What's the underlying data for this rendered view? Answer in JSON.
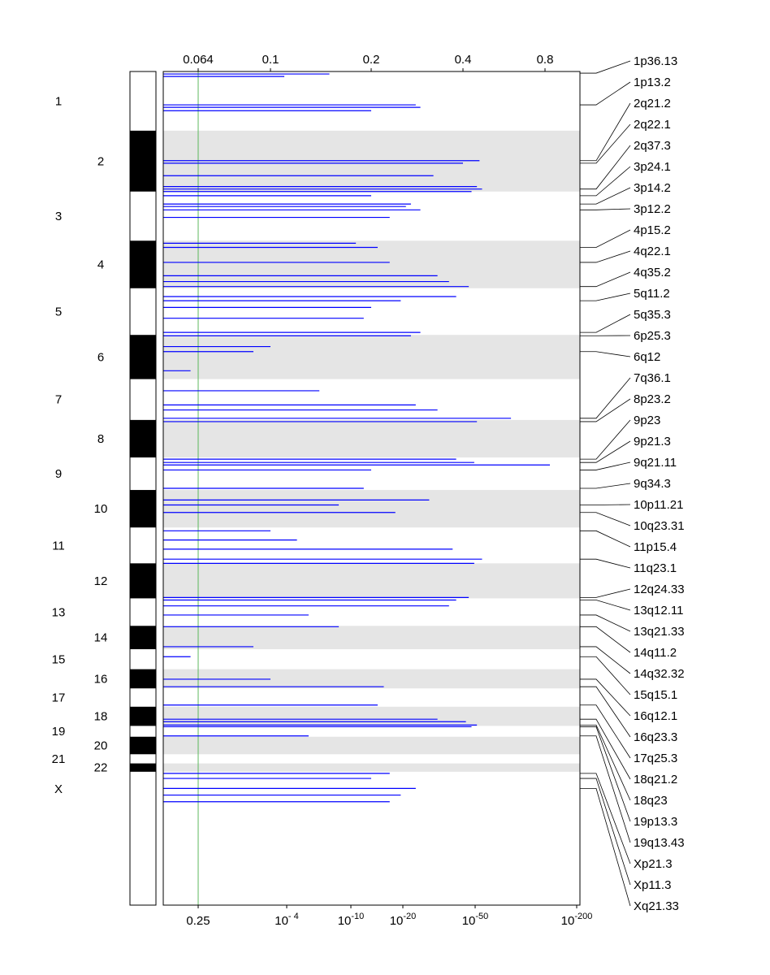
{
  "chart_data": {
    "type": "genome-plot",
    "title": "",
    "top_axis": {
      "ticks": [
        "0.064",
        "0.1",
        "0.2",
        "0.4",
        "0.8"
      ],
      "tick_values": [
        0.064,
        0.1,
        0.2,
        0.4,
        0.8
      ]
    },
    "bottom_axis": {
      "ticks": [
        {
          "base": "0.25",
          "exp": ""
        },
        {
          "base": "10",
          "exp": "- 4"
        },
        {
          "base": "10",
          "exp": "-10"
        },
        {
          "base": "10",
          "exp": "-20"
        },
        {
          "base": "10",
          "exp": "-50"
        },
        {
          "base": "10",
          "exp": "-200"
        }
      ]
    },
    "threshold_line": {
      "value": 0.25,
      "color": "#5cb85c"
    },
    "series_color": "#0000ff",
    "band_shading_color": "#e5e5e5",
    "chromosomes": [
      {
        "label": "1",
        "start": 0,
        "end": 0.071,
        "shade": "white"
      },
      {
        "label": "2",
        "start": 0.071,
        "end": 0.144,
        "shade": "black"
      },
      {
        "label": "3",
        "start": 0.144,
        "end": 0.203,
        "shade": "white"
      },
      {
        "label": "4",
        "start": 0.203,
        "end": 0.26,
        "shade": "black"
      },
      {
        "label": "5",
        "start": 0.26,
        "end": 0.316,
        "shade": "white"
      },
      {
        "label": "6",
        "start": 0.316,
        "end": 0.369,
        "shade": "black"
      },
      {
        "label": "7",
        "start": 0.369,
        "end": 0.418,
        "shade": "white"
      },
      {
        "label": "8",
        "start": 0.418,
        "end": 0.463,
        "shade": "black"
      },
      {
        "label": "9",
        "start": 0.463,
        "end": 0.502,
        "shade": "white"
      },
      {
        "label": "10",
        "start": 0.502,
        "end": 0.547,
        "shade": "black"
      },
      {
        "label": "11",
        "start": 0.547,
        "end": 0.59,
        "shade": "white"
      },
      {
        "label": "12",
        "start": 0.59,
        "end": 0.632,
        "shade": "black"
      },
      {
        "label": "13",
        "start": 0.632,
        "end": 0.665,
        "shade": "white"
      },
      {
        "label": "14",
        "start": 0.665,
        "end": 0.693,
        "shade": "black"
      },
      {
        "label": "15",
        "start": 0.693,
        "end": 0.717,
        "shade": "white"
      },
      {
        "label": "16",
        "start": 0.717,
        "end": 0.74,
        "shade": "black"
      },
      {
        "label": "17",
        "start": 0.74,
        "end": 0.762,
        "shade": "white"
      },
      {
        "label": "18",
        "start": 0.762,
        "end": 0.785,
        "shade": "black"
      },
      {
        "label": "19",
        "start": 0.785,
        "end": 0.798,
        "shade": "white"
      },
      {
        "label": "20",
        "start": 0.798,
        "end": 0.819,
        "shade": "black"
      },
      {
        "label": "21",
        "start": 0.819,
        "end": 0.83,
        "shade": "white"
      },
      {
        "label": "22",
        "start": 0.83,
        "end": 0.84,
        "shade": "black"
      },
      {
        "label": "X",
        "start": 0.84,
        "end": 0.881,
        "shade": "white"
      }
    ],
    "cytobands": [
      {
        "label": "1p36.13",
        "pos": 0.002
      },
      {
        "label": "1p13.2",
        "pos": 0.04
      },
      {
        "label": "2q21.2",
        "pos": 0.107
      },
      {
        "label": "2q22.1",
        "pos": 0.11
      },
      {
        "label": "2q37.3",
        "pos": 0.141
      },
      {
        "label": "3p24.1",
        "pos": 0.149
      },
      {
        "label": "3p14.2",
        "pos": 0.159
      },
      {
        "label": "3p12.2",
        "pos": 0.166
      },
      {
        "label": "4p15.2",
        "pos": 0.211
      },
      {
        "label": "4q22.1",
        "pos": 0.229
      },
      {
        "label": "4q35.2",
        "pos": 0.258
      },
      {
        "label": "5q11.2",
        "pos": 0.275
      },
      {
        "label": "5q35.3",
        "pos": 0.313
      },
      {
        "label": "6p25.3",
        "pos": 0.317
      },
      {
        "label": "6q12",
        "pos": 0.336
      },
      {
        "label": "7q36.1",
        "pos": 0.416
      },
      {
        "label": "8p23.2",
        "pos": 0.42
      },
      {
        "label": "9p23",
        "pos": 0.465
      },
      {
        "label": "9p21.3",
        "pos": 0.469
      },
      {
        "label": "9q21.11",
        "pos": 0.478
      },
      {
        "label": "9q34.3",
        "pos": 0.5
      },
      {
        "label": "10p11.21",
        "pos": 0.52
      },
      {
        "label": "10q23.31",
        "pos": 0.529
      },
      {
        "label": "11p15.4",
        "pos": 0.551
      },
      {
        "label": "11q23.1",
        "pos": 0.585
      },
      {
        "label": "12q24.33",
        "pos": 0.631
      },
      {
        "label": "13q12.11",
        "pos": 0.634
      },
      {
        "label": "13q21.33",
        "pos": 0.652
      },
      {
        "label": "14q11.2",
        "pos": 0.666
      },
      {
        "label": "14q32.32",
        "pos": 0.69
      },
      {
        "label": "15q15.1",
        "pos": 0.702
      },
      {
        "label": "16q12.1",
        "pos": 0.729
      },
      {
        "label": "16q23.3",
        "pos": 0.738
      },
      {
        "label": "17q25.3",
        "pos": 0.76
      },
      {
        "label": "18q21.2",
        "pos": 0.777
      },
      {
        "label": "18q23",
        "pos": 0.784
      },
      {
        "label": "19p13.3",
        "pos": 0.786
      },
      {
        "label": "19q13.43",
        "pos": 0.797
      },
      {
        "label": "Xp21.3",
        "pos": 0.842
      },
      {
        "label": "Xp11.3",
        "pos": 0.848
      },
      {
        "label": "Xq21.33",
        "pos": 0.86
      }
    ],
    "peaks": [
      {
        "pos": 0.003,
        "score": 0.15
      },
      {
        "pos": 0.006,
        "score": 0.11
      },
      {
        "pos": 0.04,
        "score": 0.28
      },
      {
        "pos": 0.043,
        "score": 0.29
      },
      {
        "pos": 0.047,
        "score": 0.2
      },
      {
        "pos": 0.107,
        "score": 0.46
      },
      {
        "pos": 0.11,
        "score": 0.4
      },
      {
        "pos": 0.125,
        "score": 0.32
      },
      {
        "pos": 0.138,
        "score": 0.45
      },
      {
        "pos": 0.141,
        "score": 0.47
      },
      {
        "pos": 0.144,
        "score": 0.43
      },
      {
        "pos": 0.149,
        "score": 0.2
      },
      {
        "pos": 0.159,
        "score": 0.27
      },
      {
        "pos": 0.162,
        "score": 0.26
      },
      {
        "pos": 0.166,
        "score": 0.29
      },
      {
        "pos": 0.175,
        "score": 0.23
      },
      {
        "pos": 0.206,
        "score": 0.18
      },
      {
        "pos": 0.211,
        "score": 0.21
      },
      {
        "pos": 0.229,
        "score": 0.23
      },
      {
        "pos": 0.245,
        "score": 0.33
      },
      {
        "pos": 0.252,
        "score": 0.36
      },
      {
        "pos": 0.258,
        "score": 0.42
      },
      {
        "pos": 0.27,
        "score": 0.38
      },
      {
        "pos": 0.275,
        "score": 0.25
      },
      {
        "pos": 0.283,
        "score": 0.2
      },
      {
        "pos": 0.296,
        "score": 0.19
      },
      {
        "pos": 0.313,
        "score": 0.29
      },
      {
        "pos": 0.317,
        "score": 0.27
      },
      {
        "pos": 0.33,
        "score": 0.1
      },
      {
        "pos": 0.336,
        "score": 0.09
      },
      {
        "pos": 0.359,
        "score": 0.05
      },
      {
        "pos": 0.383,
        "score": 0.14
      },
      {
        "pos": 0.4,
        "score": 0.28
      },
      {
        "pos": 0.406,
        "score": 0.33
      },
      {
        "pos": 0.416,
        "score": 0.6
      },
      {
        "pos": 0.42,
        "score": 0.45
      },
      {
        "pos": 0.465,
        "score": 0.38
      },
      {
        "pos": 0.469,
        "score": 0.44
      },
      {
        "pos": 0.472,
        "score": 0.86
      },
      {
        "pos": 0.478,
        "score": 0.2
      },
      {
        "pos": 0.5,
        "score": 0.19
      },
      {
        "pos": 0.514,
        "score": 0.31
      },
      {
        "pos": 0.52,
        "score": 0.16
      },
      {
        "pos": 0.529,
        "score": 0.24
      },
      {
        "pos": 0.551,
        "score": 0.1
      },
      {
        "pos": 0.562,
        "score": 0.12
      },
      {
        "pos": 0.573,
        "score": 0.37
      },
      {
        "pos": 0.585,
        "score": 0.47
      },
      {
        "pos": 0.59,
        "score": 0.44
      },
      {
        "pos": 0.631,
        "score": 0.42
      },
      {
        "pos": 0.634,
        "score": 0.38
      },
      {
        "pos": 0.641,
        "score": 0.36
      },
      {
        "pos": 0.652,
        "score": 0.13
      },
      {
        "pos": 0.666,
        "score": 0.16
      },
      {
        "pos": 0.69,
        "score": 0.09
      },
      {
        "pos": 0.702,
        "score": 0.05
      },
      {
        "pos": 0.729,
        "score": 0.1
      },
      {
        "pos": 0.738,
        "score": 0.22
      },
      {
        "pos": 0.76,
        "score": 0.21
      },
      {
        "pos": 0.777,
        "score": 0.33
      },
      {
        "pos": 0.78,
        "score": 0.41
      },
      {
        "pos": 0.784,
        "score": 0.45
      },
      {
        "pos": 0.786,
        "score": 0.43
      },
      {
        "pos": 0.797,
        "score": 0.13
      },
      {
        "pos": 0.842,
        "score": 0.23
      },
      {
        "pos": 0.848,
        "score": 0.2
      },
      {
        "pos": 0.86,
        "score": 0.28
      },
      {
        "pos": 0.868,
        "score": 0.25
      },
      {
        "pos": 0.876,
        "score": 0.23
      }
    ]
  }
}
